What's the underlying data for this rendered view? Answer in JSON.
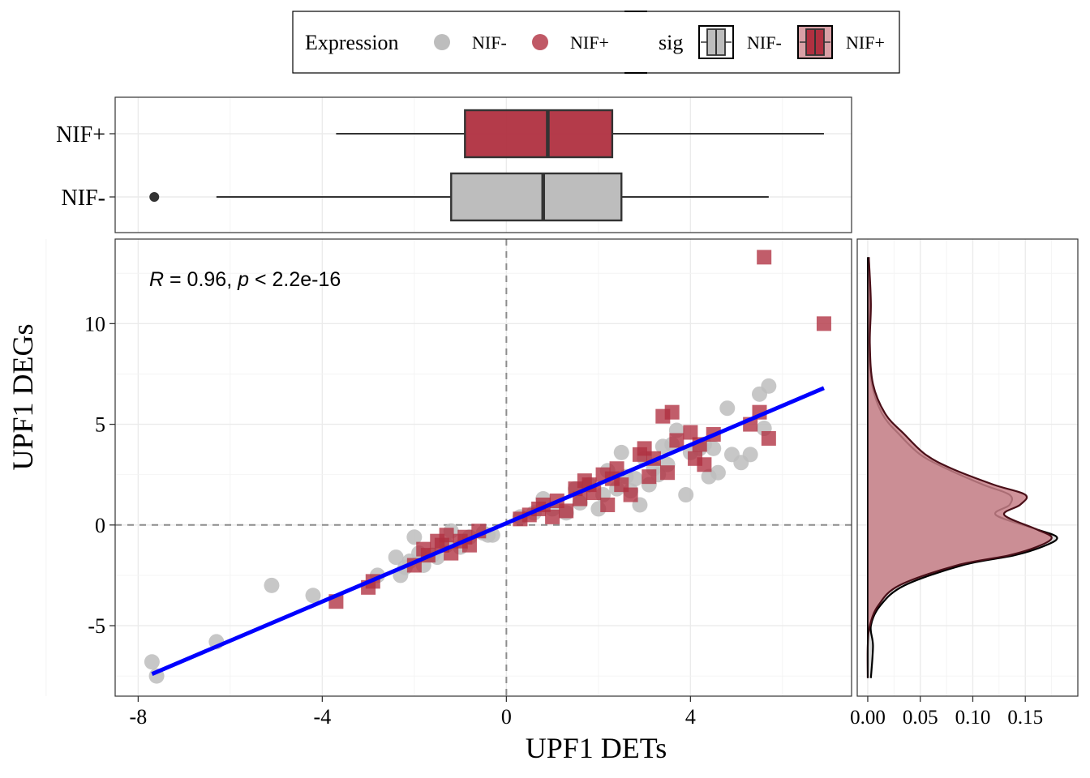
{
  "legend": {
    "expression_title": "Expression",
    "expression_items": [
      "NIF-",
      "NIF+"
    ],
    "sig_title": "sig",
    "sig_items": [
      "NIF-",
      "NIF+"
    ]
  },
  "colors": {
    "nif_minus": "#bdbdbd",
    "nif_plus": "#b03040",
    "fit_line": "#0000ff",
    "ref_line": "#8c8c8c",
    "density_nif_minus": "#d9d9d9",
    "density_nif_plus": "#c88088"
  },
  "chart_data": [
    {
      "id": "scatter",
      "type": "scatter",
      "xlabel": "UPF1 DETs",
      "ylabel": "UPF1 DEGs",
      "xlim": [
        -8.5,
        7.5
      ],
      "ylim": [
        -8.5,
        14.2
      ],
      "xticks": [
        -8,
        -4,
        0,
        4
      ],
      "yticks": [
        -5,
        0,
        5,
        10
      ],
      "annotation": "R = 0.96, p < 2.2e-16",
      "reference_lines": {
        "x": 0,
        "y": 0
      },
      "fit_line": {
        "x": [
          -7.7,
          6.9
        ],
        "y": [
          -7.4,
          6.8
        ]
      },
      "series": [
        {
          "name": "NIF-",
          "marker": "circle",
          "x": [
            -7.7,
            -7.6,
            -6.3,
            -5.1,
            -4.2,
            -2.8,
            -2.4,
            -2.3,
            -2.2,
            -2.1,
            -2.0,
            -1.9,
            -1.8,
            -1.6,
            -1.5,
            -1.3,
            -1.2,
            -1.0,
            -0.8,
            -0.5,
            -0.4,
            -0.3,
            0.3,
            0.6,
            0.8,
            1.0,
            1.3,
            1.5,
            1.6,
            1.8,
            2.0,
            2.1,
            2.2,
            2.4,
            2.5,
            2.6,
            2.7,
            2.8,
            2.9,
            3.0,
            3.1,
            3.2,
            3.3,
            3.4,
            3.5,
            3.6,
            3.7,
            3.9,
            4.0,
            4.2,
            4.3,
            4.4,
            4.5,
            4.6,
            4.8,
            4.9,
            5.1,
            5.3,
            5.5,
            5.6,
            5.7
          ],
          "y": [
            -6.8,
            -7.5,
            -5.8,
            -3.0,
            -3.5,
            -2.5,
            -1.6,
            -2.5,
            -2.1,
            -1.8,
            -0.6,
            -1.4,
            -2.0,
            -1.5,
            -1.6,
            -1.0,
            -0.3,
            -1.1,
            -0.6,
            -0.4,
            -0.5,
            -0.5,
            0.4,
            0.6,
            1.3,
            0.8,
            0.6,
            1.8,
            1.1,
            2.0,
            0.8,
            1.5,
            2.7,
            1.8,
            3.6,
            2.4,
            1.7,
            2.3,
            1.0,
            3.3,
            2.0,
            2.8,
            2.5,
            3.9,
            3.0,
            4.0,
            4.7,
            1.5,
            3.6,
            3.8,
            4.0,
            2.4,
            3.8,
            2.6,
            5.8,
            3.5,
            3.1,
            3.5,
            6.5,
            4.8,
            6.9
          ]
        },
        {
          "name": "NIF+",
          "marker": "square",
          "x": [
            -3.7,
            -3.0,
            -2.9,
            -2.0,
            -1.8,
            -1.7,
            -1.5,
            -1.4,
            -1.3,
            -1.2,
            -1.0,
            -0.9,
            -0.8,
            -0.6,
            0.3,
            0.5,
            0.7,
            0.8,
            1.0,
            1.1,
            1.3,
            1.5,
            1.6,
            1.7,
            1.8,
            1.9,
            2.1,
            2.2,
            2.3,
            2.4,
            2.5,
            2.7,
            2.9,
            3.0,
            3.1,
            3.2,
            3.4,
            3.5,
            3.6,
            3.7,
            4.0,
            4.1,
            4.2,
            4.3,
            4.5,
            5.3,
            5.5,
            5.6,
            5.7,
            6.9
          ],
          "y": [
            -3.8,
            -3.1,
            -2.8,
            -2.0,
            -1.2,
            -1.5,
            -0.8,
            -1.0,
            -0.5,
            -1.4,
            -0.8,
            -0.6,
            -1.0,
            -0.3,
            0.3,
            0.5,
            0.8,
            1.0,
            0.4,
            1.2,
            0.7,
            1.8,
            1.3,
            2.2,
            2.0,
            1.6,
            2.5,
            1.0,
            2.3,
            2.8,
            2.0,
            1.5,
            3.5,
            3.8,
            2.4,
            3.3,
            5.4,
            2.6,
            5.6,
            4.2,
            4.6,
            3.3,
            4.0,
            3.0,
            4.5,
            5.0,
            5.6,
            13.3,
            4.3,
            10.0
          ]
        }
      ]
    },
    {
      "id": "boxplot-top",
      "type": "box",
      "orientation": "horizontal",
      "categories": [
        "NIF+",
        "NIF-"
      ],
      "series": [
        {
          "name": "NIF+",
          "whisker_low": -3.7,
          "q1": -0.9,
          "median": 0.9,
          "q3": 2.3,
          "whisker_high": 6.9,
          "outliers": []
        },
        {
          "name": "NIF-",
          "whisker_low": -6.3,
          "q1": -1.2,
          "median": 0.8,
          "q3": 2.5,
          "whisker_high": 5.7,
          "outliers": [
            -7.65
          ]
        }
      ]
    },
    {
      "id": "density-right",
      "type": "area",
      "orientation": "vertical",
      "xticks": [
        0.0,
        0.05,
        0.1,
        0.15
      ],
      "xtick_labels": [
        "0.00",
        "0.05",
        "0.10",
        "0.15"
      ],
      "xlim": [
        -0.01,
        0.2
      ],
      "series": [
        {
          "name": "NIF-",
          "y": [
            -7.6,
            -6.0,
            -5.0,
            -4.0,
            -3.0,
            -2.0,
            -1.5,
            -1.0,
            -0.6,
            -0.2,
            0.5,
            1.0,
            1.5,
            2.0,
            2.8,
            3.5,
            4.5,
            5.5,
            7.0,
            9.0,
            11.0,
            13.3
          ],
          "density": [
            0.003,
            0.005,
            0.003,
            0.012,
            0.035,
            0.09,
            0.14,
            0.17,
            0.18,
            0.16,
            0.122,
            0.135,
            0.135,
            0.11,
            0.075,
            0.05,
            0.03,
            0.014,
            0.004,
            0.001,
            0.002,
            0.001
          ]
        },
        {
          "name": "NIF+",
          "y": [
            -7.6,
            -6.0,
            -5.0,
            -4.0,
            -3.0,
            -2.0,
            -1.5,
            -1.0,
            -0.6,
            -0.2,
            0.5,
            1.0,
            1.5,
            2.0,
            2.8,
            3.5,
            4.5,
            5.5,
            7.0,
            9.0,
            11.0,
            13.3
          ],
          "density": [
            0.0,
            0.0,
            0.002,
            0.01,
            0.03,
            0.085,
            0.135,
            0.165,
            0.175,
            0.16,
            0.13,
            0.145,
            0.15,
            0.12,
            0.08,
            0.055,
            0.035,
            0.017,
            0.005,
            0.002,
            0.003,
            0.001
          ]
        }
      ]
    }
  ]
}
